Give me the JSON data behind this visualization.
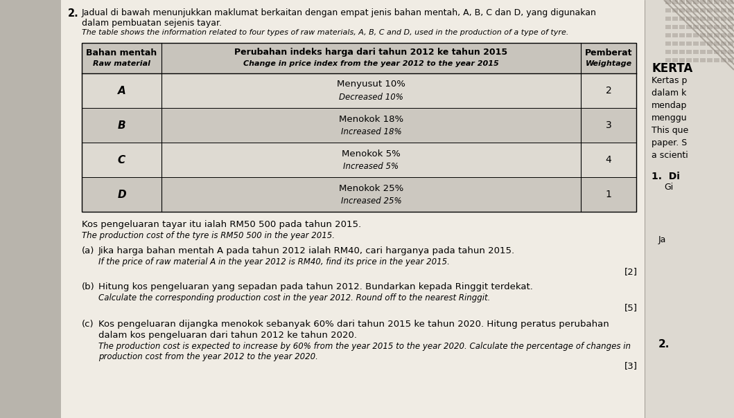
{
  "bg_color": "#c8c4bc",
  "paper_color": "#f0ece4",
  "right_panel_color": "#e8e4dc",
  "right_stripe_color": "#b0a898",
  "question_number": "2.",
  "title_malay": "Jadual di bawah menunjukkan maklumat berkaitan dengan empat jenis bahan mentah, A, B, C dan D, yang digunakan",
  "title_malay2": "dalam pembuatan sejenis tayar.",
  "title_english": "The table shows the information related to four types of raw materials, A, B, C and D, used in the production of a type of tyre.",
  "table_header_col1_line1": "Bahan mentah",
  "table_header_col1_line2": "Raw material",
  "table_header_col2_line1": "Perubahan indeks harga dari tahun 2012 ke tahun 2015",
  "table_header_col2_line2": "Change in price index from the year 2012 to the year 2015",
  "table_header_col3_line1": "Pemberat",
  "table_header_col3_line2": "Weightage",
  "table_data": [
    [
      "A",
      "Menyusut 10%",
      "Decreased 10%",
      "2"
    ],
    [
      "B",
      "Menokok 18%",
      "Increased 18%",
      "3"
    ],
    [
      "C",
      "Menokok 5%",
      "Increased 5%",
      "4"
    ],
    [
      "D",
      "Menokok 25%",
      "Increased 25%",
      "1"
    ]
  ],
  "header_bg": "#c8c4bc",
  "row_bg_even": "#dedad2",
  "row_bg_odd": "#ccc8c0",
  "cost_malay": "Kos pengeluaran tayar itu ialah RM50 500 pada tahun 2015.",
  "cost_english": "The production cost of the tyre is RM50 500 in the year 2015.",
  "qa_label": "(a)",
  "qa_malay": "Jika harga bahan mentah A pada tahun 2012 ialah RM40, cari harganya pada tahun 2015.",
  "qa_english": "If the price of raw material A in the year 2012 is RM40, find its price in the year 2015.",
  "qa_marks": "[2]",
  "qb_label": "(b)",
  "qb_malay": "Hitung kos pengeluaran yang sepadan pada tahun 2012. Bundarkan kepada Ringgit terdekat.",
  "qb_english": "Calculate the corresponding production cost in the year 2012. Round off to the nearest Ringgit.",
  "qb_marks": "[5]",
  "qc_label": "(c)",
  "qc_malay1": "Kos pengeluaran dijangka menokok sebanyak 60% dari tahun 2015 ke tahun 2020. Hitung peratus perubahan",
  "qc_malay2": "dalam kos pengeluaran dari tahun 2012 ke tahun 2020.",
  "qc_eng1": "The production cost is expected to increase by 60% from the year 2015 to the year 2020. Calculate the percentage of changes in",
  "qc_eng2": "production cost from the year 2012 to the year 2020.",
  "qc_marks": "[3]",
  "right_kerta": "KERTA",
  "right_lines": [
    "Kertas p",
    "dalam k",
    "mendap",
    "menggu",
    "This que",
    "paper. S",
    "a scienti"
  ],
  "right_1di": "1.  Di",
  "right_gi": "Gi",
  "right_ja": "Ja",
  "right_2": "2.",
  "right_erta": "ERTA",
  "right_ertas": "ertas p",
  "right_alam": "alam k",
  "right_mendap": "mendap",
  "right_menggu": "menggu"
}
